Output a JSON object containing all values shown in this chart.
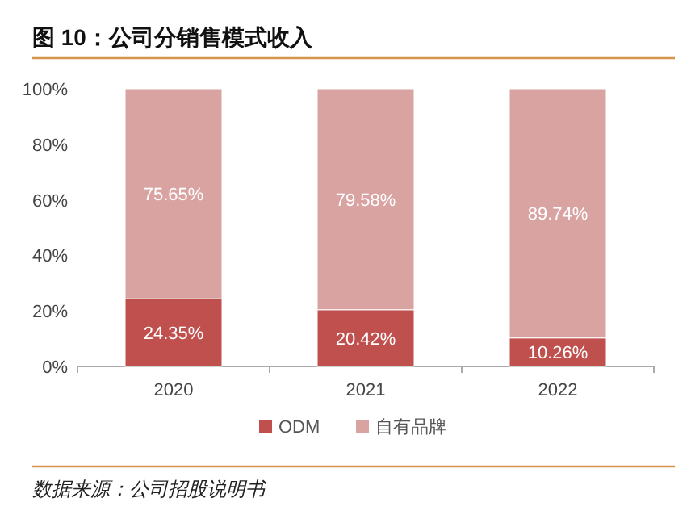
{
  "chart_data": {
    "type": "bar",
    "title": "图 10：公司分销售模式收入",
    "stacked": true,
    "categories": [
      "2020",
      "2021",
      "2022"
    ],
    "series": [
      {
        "name": "ODM",
        "color": "#c0504d",
        "values": [
          24.35,
          20.42,
          10.26
        ],
        "value_labels": [
          "24.35%",
          "20.42%",
          "10.26%"
        ]
      },
      {
        "name": "自有品牌",
        "color": "#d9a3a2",
        "values": [
          75.65,
          79.58,
          89.74
        ],
        "value_labels": [
          "75.65%",
          "79.58%",
          "89.74%"
        ]
      }
    ],
    "ylim": [
      0,
      100
    ],
    "yticks": [
      {
        "value": 0,
        "label": "0%"
      },
      {
        "value": 20,
        "label": "20%"
      },
      {
        "value": 40,
        "label": "40%"
      },
      {
        "value": 60,
        "label": "60%"
      },
      {
        "value": 80,
        "label": "80%"
      },
      {
        "value": 100,
        "label": "100%"
      }
    ],
    "grid": false,
    "legend": "bottom",
    "annotations": [
      "数据来源：公司招股说明书"
    ]
  }
}
